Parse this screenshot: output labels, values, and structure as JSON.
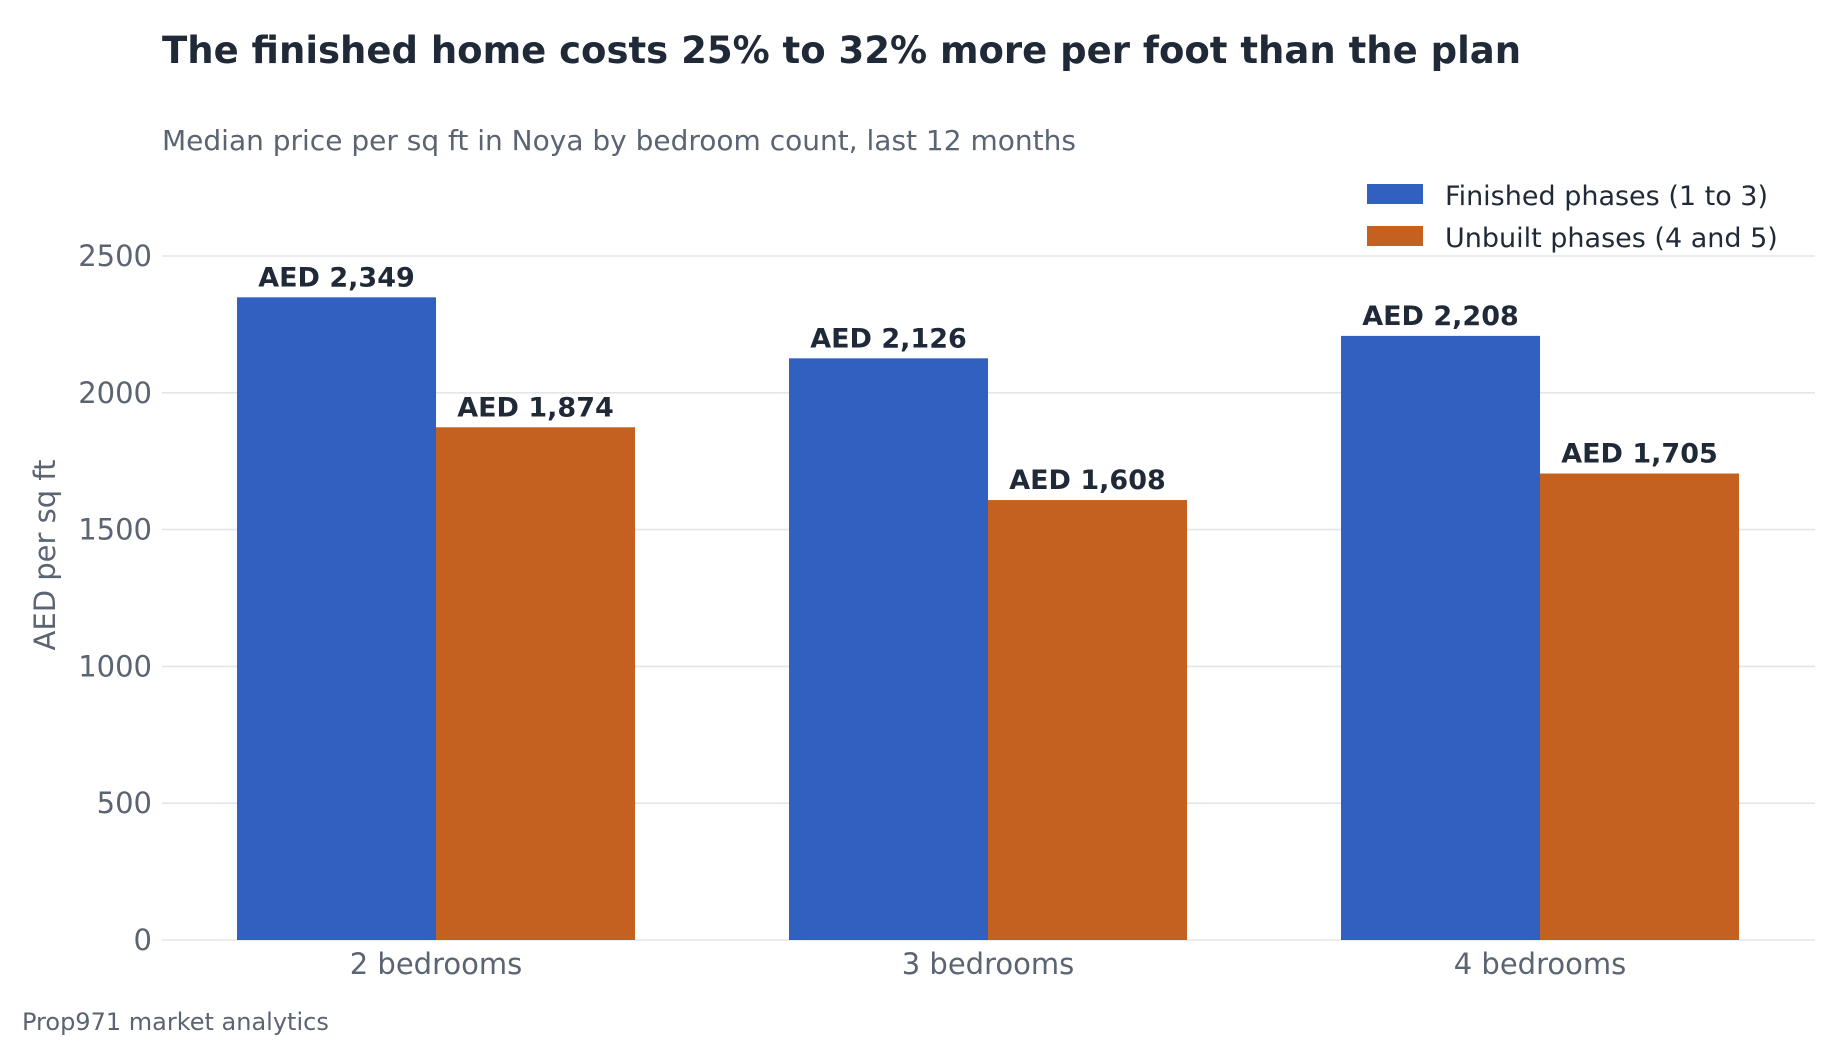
{
  "chart_data": {
    "type": "bar",
    "title": "The finished home costs 25% to 32% more per foot than the plan",
    "subtitle": "Median price per sq ft in Noya by bedroom count, last 12 months",
    "xlabel": "",
    "ylabel": "AED per sq ft",
    "ylim": [
      0,
      2500
    ],
    "yticks": [
      0,
      500,
      1000,
      1500,
      2000,
      2500
    ],
    "grid": true,
    "legend_position": "top-right",
    "categories": [
      "2 bedrooms",
      "3 bedrooms",
      "4 bedrooms"
    ],
    "series": [
      {
        "name": "Finished phases (1 to 3)",
        "color": "#3060c0",
        "values": [
          2349,
          2126,
          2208
        ],
        "labels": [
          "AED 2,349",
          "AED 2,126",
          "AED 2,208"
        ]
      },
      {
        "name": "Unbuilt phases (4 and 5)",
        "color": "#c4611f",
        "values": [
          1874,
          1608,
          1705
        ],
        "labels": [
          "AED 1,874",
          "AED 1,608",
          "AED 1,705"
        ]
      }
    ]
  },
  "footer": {
    "source": "Prop971 market analytics"
  }
}
